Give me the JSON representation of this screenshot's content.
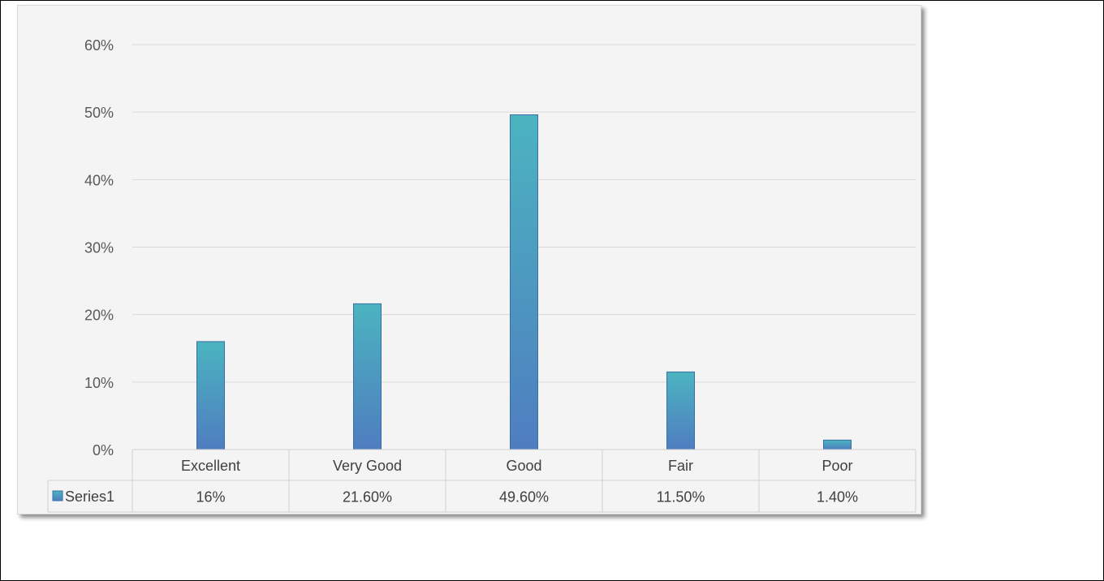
{
  "chart_data": {
    "type": "bar",
    "categories": [
      "Excellent",
      "Very Good",
      "Good",
      "Fair",
      "Poor"
    ],
    "series": [
      {
        "name": "Series1",
        "values": [
          16,
          21.6,
          49.6,
          11.5,
          1.4
        ],
        "data_labels": [
          "16%",
          "21.60%",
          "49.60%",
          "11.50%",
          "1.40%"
        ]
      }
    ],
    "title": "",
    "xlabel": "",
    "ylabel": "",
    "ylim": [
      0,
      60
    ],
    "y_ticks": [
      0,
      10,
      20,
      30,
      40,
      50,
      60
    ],
    "y_tick_labels": [
      "0%",
      "10%",
      "20%",
      "30%",
      "40%",
      "50%",
      "60%"
    ],
    "grid": true,
    "legend": "data-table",
    "colors": {
      "bar_top": "#4bb4c0",
      "bar_bottom": "#4f7dc0",
      "bar_border": "#3a6fa5",
      "gridline": "#d9d9d9",
      "table_border": "#d0d0d0",
      "card_background": "#f4f4f4"
    }
  }
}
